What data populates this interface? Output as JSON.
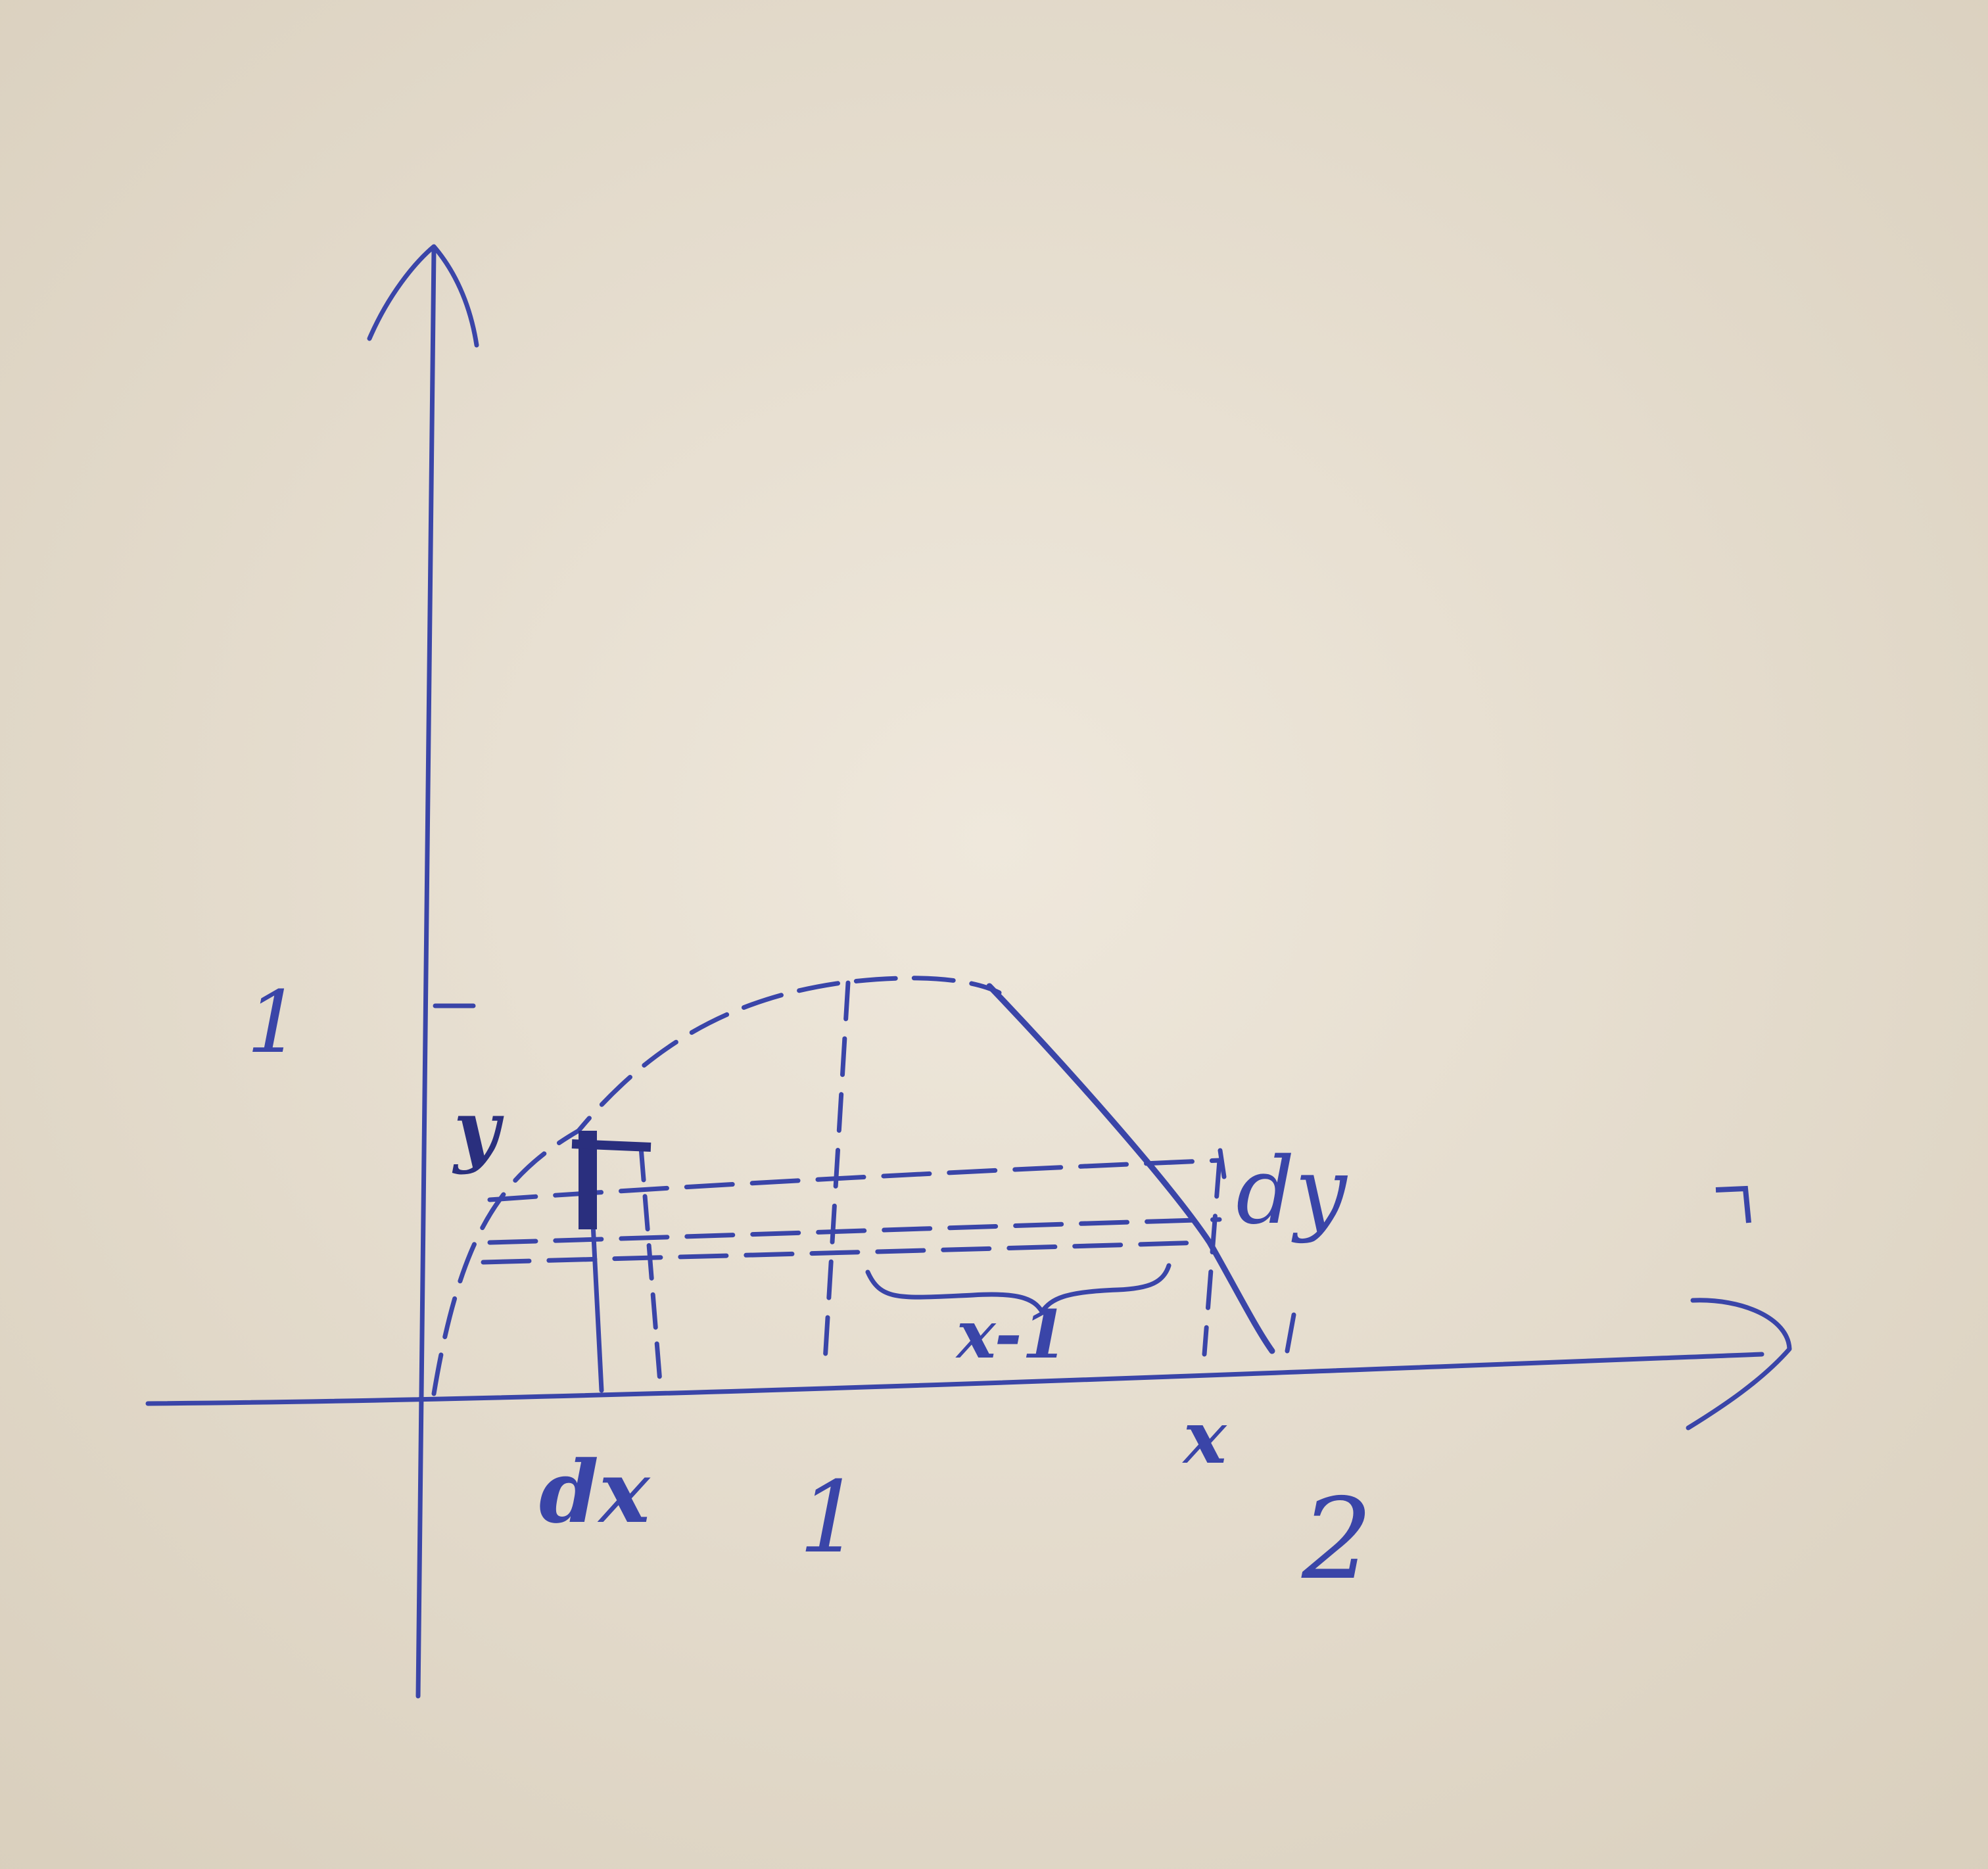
{
  "colors": {
    "paper": "#e9e1d3",
    "paper_shade": "#ddd3c2",
    "ink": "#3a45a8",
    "ink_dark": "#2a2f7e"
  },
  "labels": {
    "y_tick_one": "1",
    "y_var": "y",
    "dy": "dy",
    "x_minus_one": "x-1",
    "dx": "dx",
    "x_tick_one": "1",
    "x_var": "x",
    "x_tick_two": "2"
  }
}
